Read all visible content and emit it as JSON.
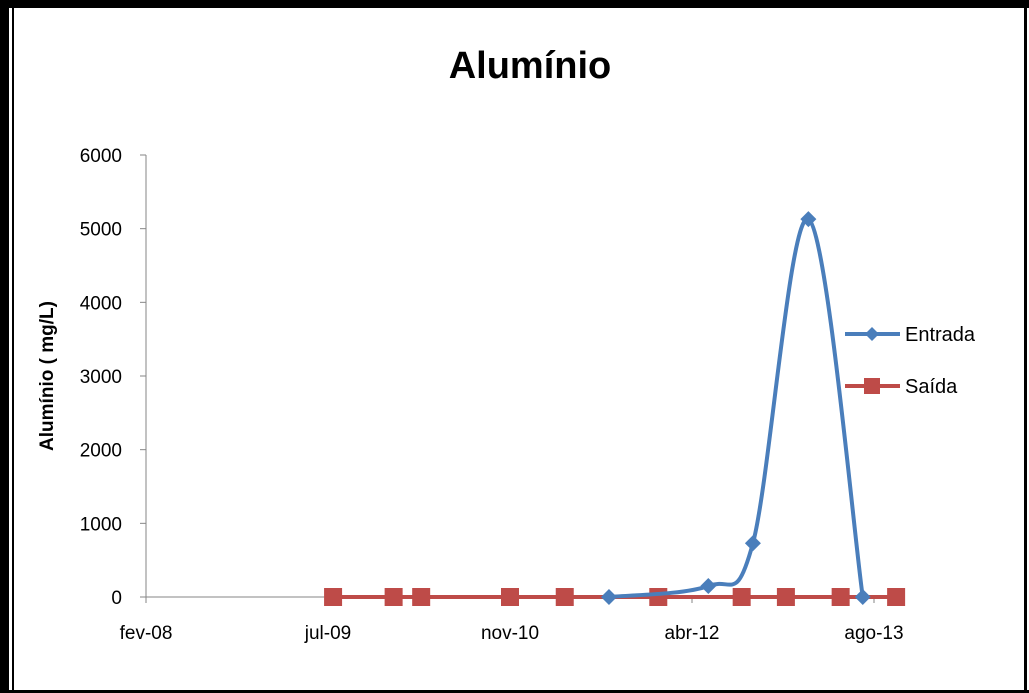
{
  "chart_data": {
    "type": "line",
    "title": "Alumínio",
    "xlabel": "",
    "ylabel": "Alumínio ( mg/L)",
    "x_ticks": [
      "fev-08",
      "jul-09",
      "nov-10",
      "abr-12",
      "ago-13"
    ],
    "y_ticks": [
      "0",
      "1000",
      "2000",
      "3000",
      "4000",
      "5000",
      "6000"
    ],
    "ylim": [
      0,
      6000
    ],
    "xlim": [
      "2008-02-01",
      "2013-08-01"
    ],
    "grid": false,
    "smoothed": true,
    "legend_position": "right",
    "series": [
      {
        "name": "Entrada",
        "color": "#4a7ebb",
        "marker": "diamond",
        "points": [
          {
            "x": "2011-08-01",
            "y": 0
          },
          {
            "x": "2012-05-01",
            "y": 150
          },
          {
            "x": "2012-09-01",
            "y": 730
          },
          {
            "x": "2013-02-01",
            "y": 5130
          },
          {
            "x": "2013-07-01",
            "y": 0
          }
        ]
      },
      {
        "name": "Saída",
        "color": "#be4b48",
        "marker": "square",
        "points": [
          {
            "x": "2009-07-01",
            "y": 0
          },
          {
            "x": "2009-12-15",
            "y": 0
          },
          {
            "x": "2010-03-01",
            "y": 0
          },
          {
            "x": "2010-11-01",
            "y": 0
          },
          {
            "x": "2011-04-01",
            "y": 0
          },
          {
            "x": "2011-12-15",
            "y": 0
          },
          {
            "x": "2012-08-01",
            "y": 0
          },
          {
            "x": "2012-12-01",
            "y": 0
          },
          {
            "x": "2013-05-01",
            "y": 0
          },
          {
            "x": "2013-10-01",
            "y": 0
          }
        ]
      }
    ]
  }
}
